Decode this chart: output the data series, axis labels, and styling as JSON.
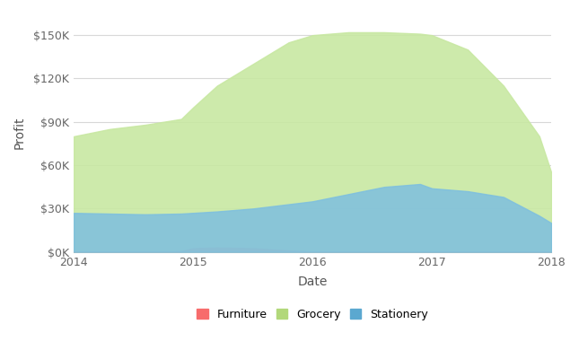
{
  "xlabel": "Date",
  "ylabel": "Profit",
  "background_color": "#ffffff",
  "plot_bg_color": "#ffffff",
  "grid_color": "#d8d8d8",
  "years": [
    2014.0,
    2014.3,
    2014.6,
    2014.9,
    2015.0,
    2015.2,
    2015.5,
    2015.8,
    2016.0,
    2016.3,
    2016.6,
    2016.9,
    2017.0,
    2017.3,
    2017.6,
    2017.9,
    2018.0
  ],
  "furniture": [
    0,
    0,
    0,
    500,
    2500,
    3000,
    2500,
    1000,
    200,
    0,
    0,
    0,
    0,
    0,
    0,
    0,
    0
  ],
  "stationery": [
    27000,
    26500,
    26000,
    26500,
    27000,
    28000,
    30000,
    33000,
    35000,
    40000,
    45000,
    47000,
    44000,
    42000,
    38000,
    25000,
    20000
  ],
  "grocery": [
    80000,
    85000,
    88000,
    92000,
    100000,
    115000,
    130000,
    145000,
    150000,
    152000,
    152000,
    151000,
    150000,
    140000,
    115000,
    80000,
    55000
  ],
  "grocery_color": "#c8e8a2",
  "furniture_color": "#d4b896",
  "stationery_color": "#7dbfe0",
  "grocery_alpha": 0.9,
  "furniture_alpha": 0.9,
  "stationery_alpha": 0.85,
  "furniture_legend_color": "#f76c6c",
  "grocery_legend_color": "#b2d87a",
  "stationery_legend_color": "#5ba8d0",
  "ylim": [
    0,
    165000
  ],
  "xlim": [
    2014,
    2018
  ],
  "yticks": [
    0,
    30000,
    60000,
    90000,
    120000,
    150000
  ],
  "ytick_labels": [
    "$0K",
    "$30K",
    "$60K",
    "$90K",
    "$120K",
    "$150K"
  ],
  "xticks": [
    2014,
    2015,
    2016,
    2017,
    2018
  ],
  "xtick_labels": [
    "2014",
    "2015",
    "2016",
    "2017",
    "2018"
  ]
}
